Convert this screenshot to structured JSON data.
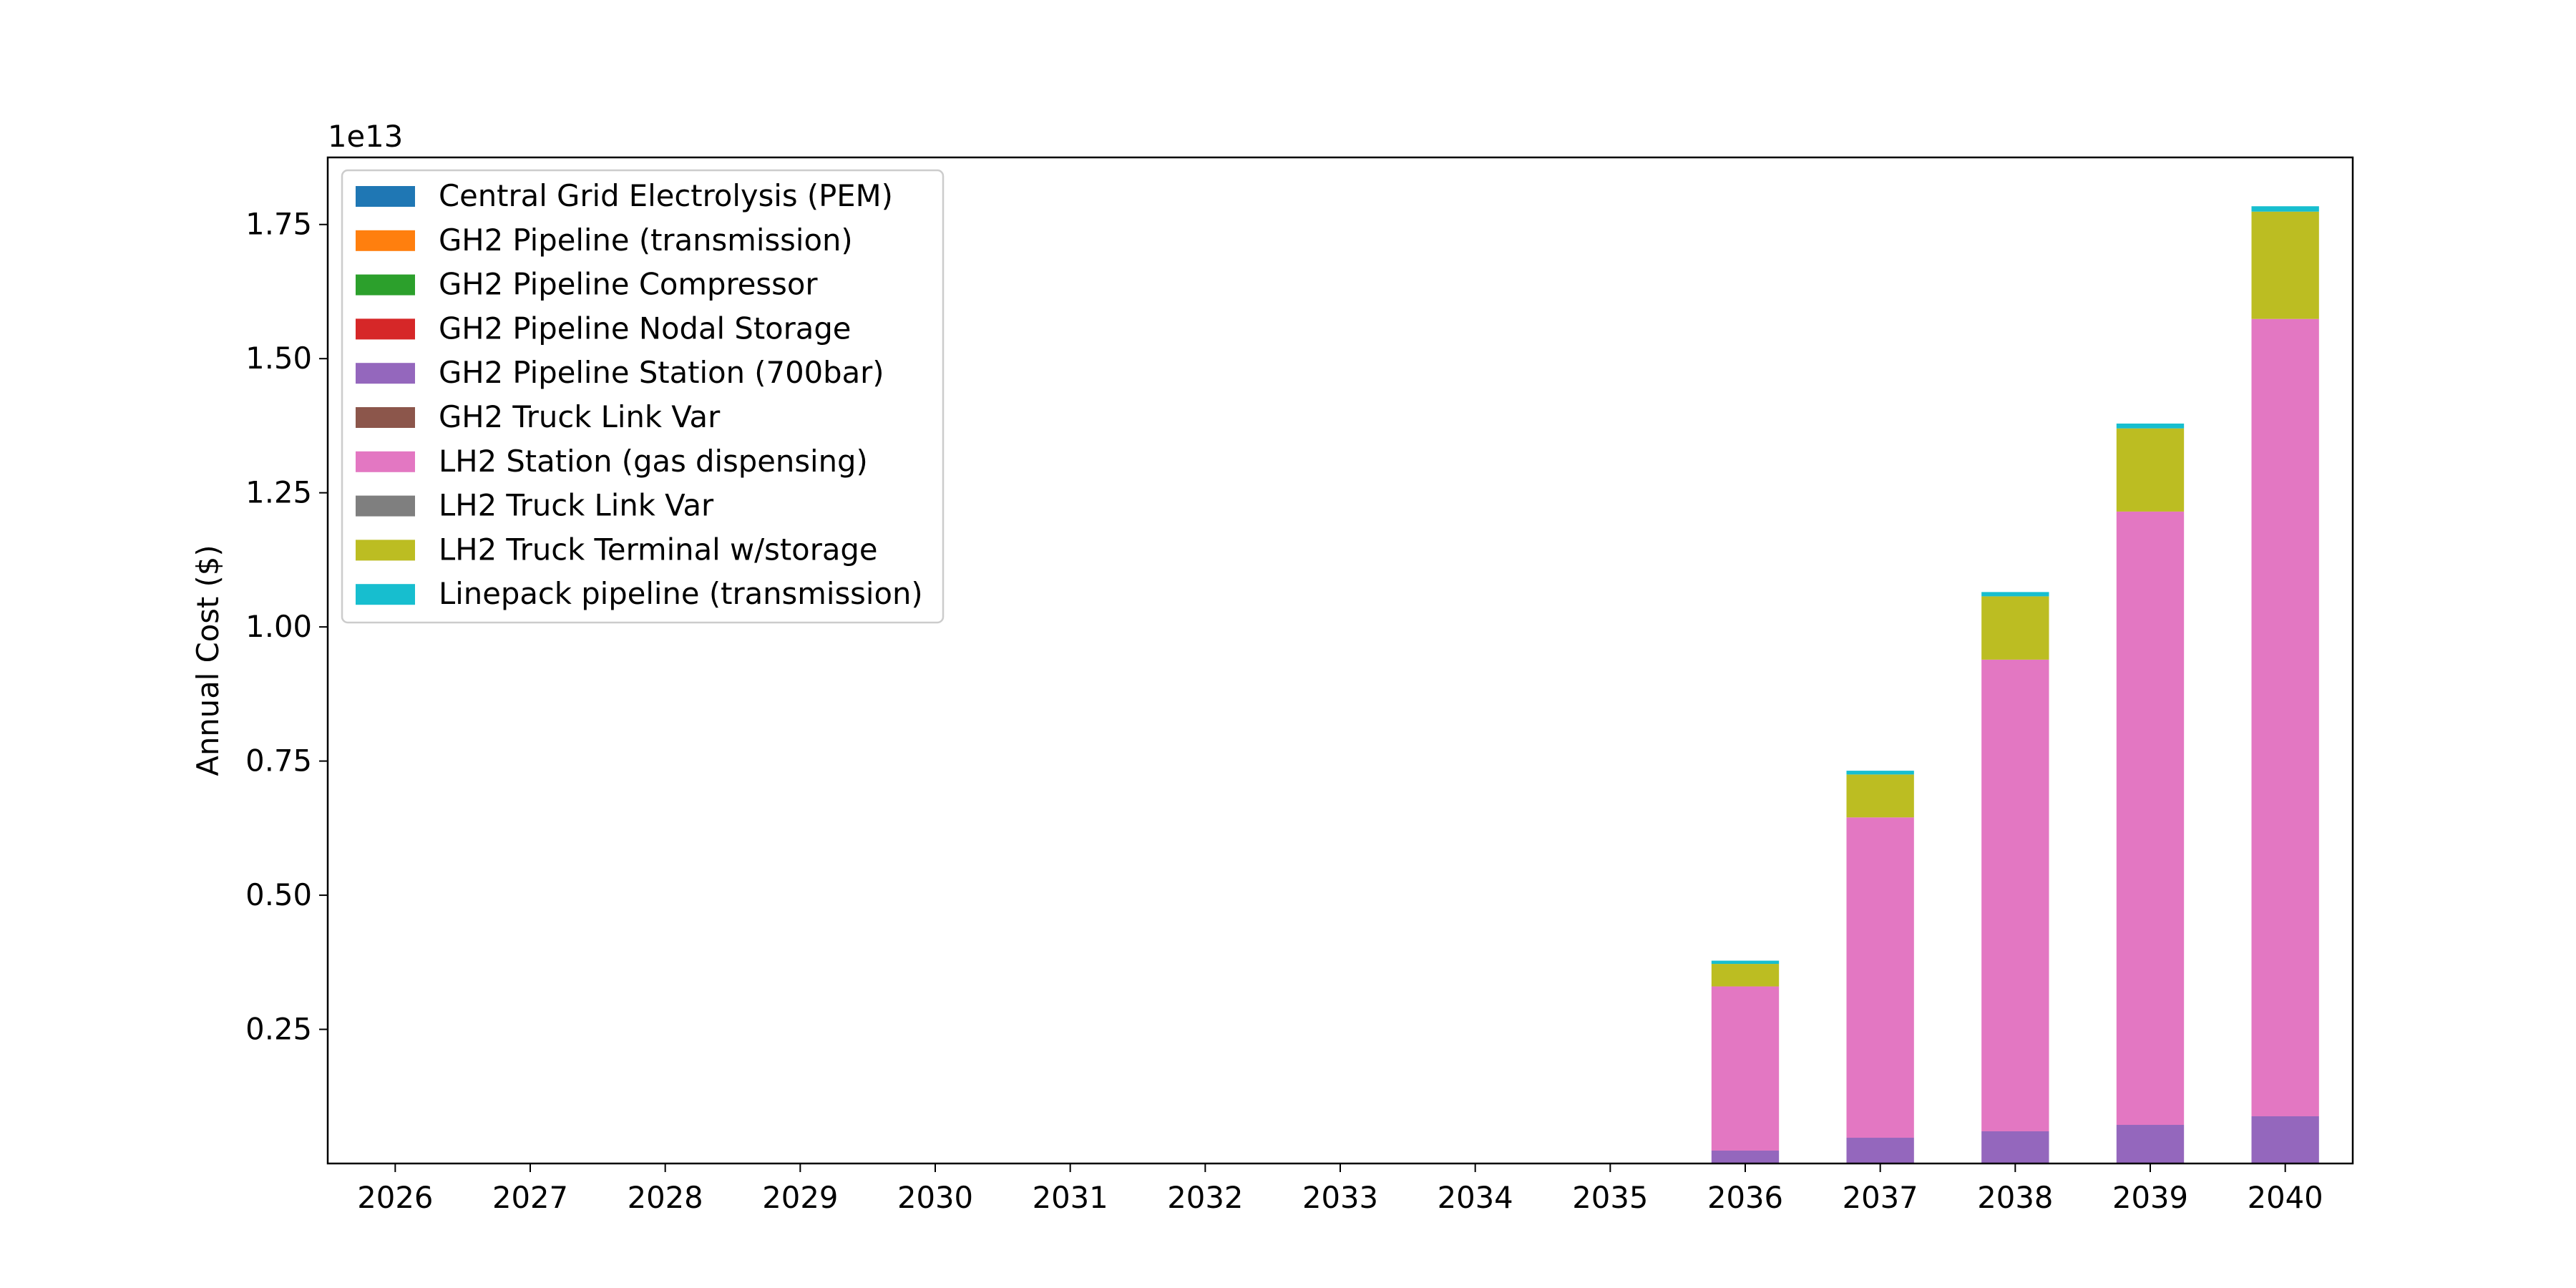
{
  "chart_data": {
    "type": "bar",
    "stacked": true,
    "categories": [
      "2026",
      "2027",
      "2028",
      "2029",
      "2030",
      "2031",
      "2032",
      "2033",
      "2034",
      "2035",
      "2036",
      "2037",
      "2038",
      "2039",
      "2040"
    ],
    "series": [
      {
        "name": "Central Grid Electrolysis (PEM)",
        "color": "#1f77b4",
        "values": [
          0,
          0,
          0,
          0,
          0,
          0,
          0,
          0,
          0,
          0,
          0,
          0,
          0,
          0,
          0
        ]
      },
      {
        "name": "GH2 Pipeline (transmission)",
        "color": "#ff7f0e",
        "values": [
          0,
          0,
          0,
          0,
          0,
          0,
          0,
          0,
          0,
          0,
          0,
          0,
          0,
          0,
          0
        ]
      },
      {
        "name": "GH2 Pipeline Compressor",
        "color": "#2ca02c",
        "values": [
          0,
          0,
          0,
          0,
          0,
          0,
          0,
          0,
          0,
          0,
          0,
          0,
          0,
          0,
          0
        ]
      },
      {
        "name": "GH2 Pipeline Nodal Storage",
        "color": "#d62728",
        "values": [
          0,
          0,
          0,
          0,
          0,
          0,
          0,
          0,
          0,
          0,
          0,
          0,
          0,
          0,
          0
        ]
      },
      {
        "name": "GH2 Pipeline Station (700bar)",
        "color": "#9467bd",
        "values": [
          0,
          0,
          0,
          0,
          0,
          0,
          0,
          0,
          0,
          0,
          0.024,
          0.048,
          0.06,
          0.072,
          0.088
        ]
      },
      {
        "name": "GH2 Truck Link Var",
        "color": "#8c564b",
        "values": [
          0,
          0,
          0,
          0,
          0,
          0,
          0,
          0,
          0,
          0,
          0,
          0,
          0,
          0,
          0
        ]
      },
      {
        "name": "LH2 Station (gas dispensing)",
        "color": "#e377c2",
        "values": [
          0,
          0,
          0,
          0,
          0,
          0,
          0,
          0,
          0,
          0,
          0.306,
          0.597,
          0.879,
          1.143,
          1.486
        ]
      },
      {
        "name": "LH2 Truck Link Var",
        "color": "#7f7f7f",
        "values": [
          0,
          0,
          0,
          0,
          0,
          0,
          0,
          0,
          0,
          0,
          0,
          0,
          0,
          0,
          0
        ]
      },
      {
        "name": "LH2 Truck Terminal w/storage",
        "color": "#bcbd22",
        "values": [
          0,
          0,
          0,
          0,
          0,
          0,
          0,
          0,
          0,
          0,
          0.042,
          0.08,
          0.118,
          0.155,
          0.2
        ]
      },
      {
        "name": "Linepack pipeline (transmission)",
        "color": "#17becf",
        "values": [
          0,
          0,
          0,
          0,
          0,
          0,
          0,
          0,
          0,
          0,
          0.006,
          0.007,
          0.008,
          0.009,
          0.01
        ]
      }
    ],
    "ylabel": "Annual Cost ($)",
    "xlabel": "",
    "offset_text": "1e13",
    "ylim": [
      0,
      1.875
    ],
    "yticks": [
      "0.25",
      "0.50",
      "0.75",
      "1.00",
      "1.25",
      "1.50",
      "1.75"
    ],
    "legend_position": "upper-left",
    "grid": false
  }
}
